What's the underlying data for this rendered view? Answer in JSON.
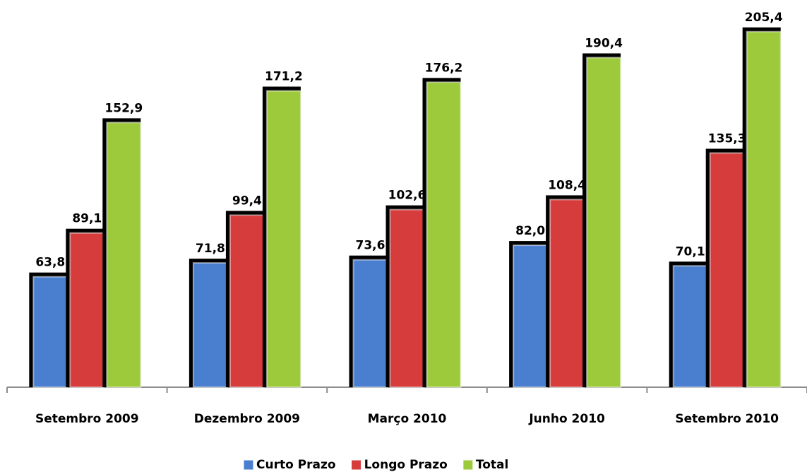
{
  "chart_data": {
    "type": "bar",
    "categories": [
      "Setembro 2009",
      "Dezembro 2009",
      "Março 2010",
      "Junho 2010",
      "Setembro 2010"
    ],
    "series": [
      {
        "name": "Curto Prazo",
        "color": "#4a7fd0",
        "values": [
          63.8,
          71.8,
          73.6,
          82.0,
          70.1
        ],
        "value_labels": [
          "63,8",
          "71,8",
          "73,6",
          "82,0",
          "70,1"
        ]
      },
      {
        "name": "Longo Prazo",
        "color": "#d63c3b",
        "values": [
          89.1,
          99.4,
          102.6,
          108.4,
          135.3
        ],
        "value_labels": [
          "89,1",
          "99,4",
          "102,6",
          "108,4",
          "135,3"
        ]
      },
      {
        "name": "Total",
        "color": "#9cca3a",
        "values": [
          152.9,
          171.2,
          176.2,
          190.4,
          205.4
        ],
        "value_labels": [
          "152,9",
          "171,2",
          "176,2",
          "190,4",
          "205,4"
        ]
      }
    ],
    "ylim": [
      0,
      220
    ]
  }
}
